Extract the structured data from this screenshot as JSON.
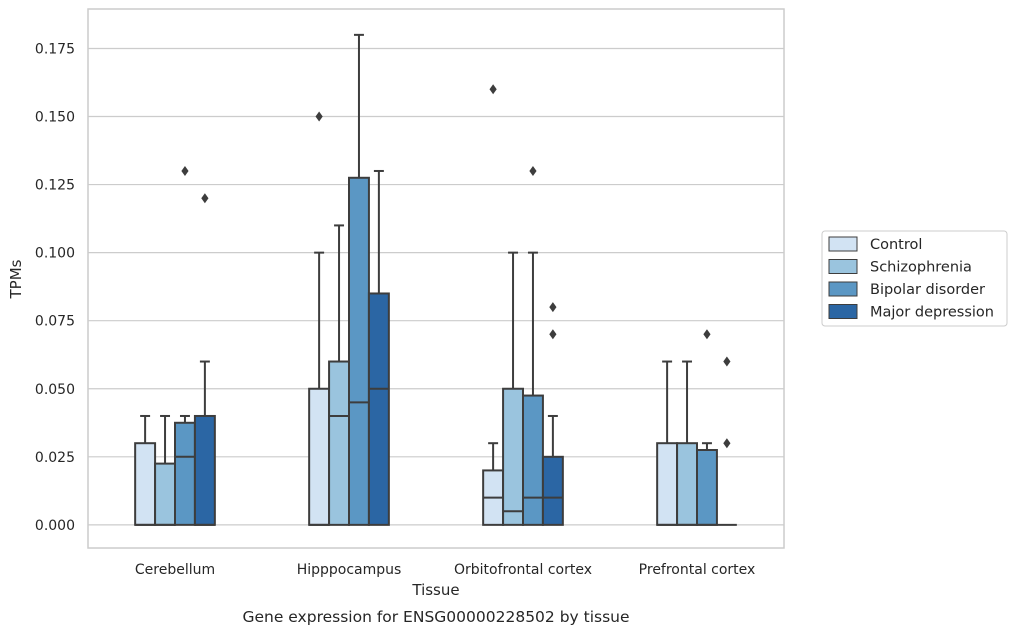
{
  "caption": "Gene expression for ENSG00000228502 by tissue",
  "chart_data": {
    "type": "box",
    "xlabel": "Tissue",
    "ylabel": "TPMs",
    "ylim": [
      -0.0085,
      0.1895
    ],
    "yticks": [
      0.0,
      0.025,
      0.05,
      0.075,
      0.1,
      0.125,
      0.15,
      0.175
    ],
    "ytick_labels": [
      "0.000",
      "0.025",
      "0.050",
      "0.075",
      "0.100",
      "0.125",
      "0.150",
      "0.175"
    ],
    "grid": "horizontal",
    "legend_position": "right",
    "categories": [
      "Cerebellum",
      "Hipppocampus",
      "Orbitofrontal cortex",
      "Prefrontal cortex"
    ],
    "series": [
      {
        "name": "Control",
        "color": "#d2e3f3",
        "boxes": [
          {
            "whisker_low": 0.0,
            "q1": 0.0,
            "median": 0.0,
            "q3": 0.03,
            "whisker_high": 0.04,
            "outliers": []
          },
          {
            "whisker_low": 0.0,
            "q1": 0.0,
            "median": 0.0,
            "q3": 0.05,
            "whisker_high": 0.1,
            "outliers": [
              0.15
            ]
          },
          {
            "whisker_low": 0.0,
            "q1": 0.0,
            "median": 0.01,
            "q3": 0.02,
            "whisker_high": 0.03,
            "outliers": [
              0.16
            ]
          },
          {
            "whisker_low": 0.0,
            "q1": 0.0,
            "median": 0.0,
            "q3": 0.03,
            "whisker_high": 0.06,
            "outliers": []
          }
        ]
      },
      {
        "name": "Schizophrenia",
        "color": "#9ac4de",
        "boxes": [
          {
            "whisker_low": 0.0,
            "q1": 0.0,
            "median": 0.0,
            "q3": 0.0225,
            "whisker_high": 0.04,
            "outliers": []
          },
          {
            "whisker_low": 0.0,
            "q1": 0.0,
            "median": 0.04,
            "q3": 0.06,
            "whisker_high": 0.11,
            "outliers": []
          },
          {
            "whisker_low": 0.0,
            "q1": 0.0,
            "median": 0.005,
            "q3": 0.05,
            "whisker_high": 0.1,
            "outliers": []
          },
          {
            "whisker_low": 0.0,
            "q1": 0.0,
            "median": 0.0,
            "q3": 0.03,
            "whisker_high": 0.06,
            "outliers": []
          }
        ]
      },
      {
        "name": "Bipolar disorder",
        "color": "#5b97c4",
        "boxes": [
          {
            "whisker_low": 0.0,
            "q1": 0.0,
            "median": 0.025,
            "q3": 0.0375,
            "whisker_high": 0.04,
            "outliers": [
              0.13
            ]
          },
          {
            "whisker_low": 0.0,
            "q1": 0.0,
            "median": 0.045,
            "q3": 0.1275,
            "whisker_high": 0.18,
            "outliers": []
          },
          {
            "whisker_low": 0.0,
            "q1": 0.0,
            "median": 0.01,
            "q3": 0.0475,
            "whisker_high": 0.1,
            "outliers": [
              0.13
            ]
          },
          {
            "whisker_low": 0.0,
            "q1": 0.0,
            "median": 0.0,
            "q3": 0.0275,
            "whisker_high": 0.03,
            "outliers": [
              0.07
            ]
          }
        ]
      },
      {
        "name": "Major depression",
        "color": "#2b66a4",
        "boxes": [
          {
            "whisker_low": 0.0,
            "q1": 0.0,
            "median": 0.0,
            "q3": 0.04,
            "whisker_high": 0.06,
            "outliers": [
              0.12
            ]
          },
          {
            "whisker_low": 0.0,
            "q1": 0.0,
            "median": 0.05,
            "q3": 0.085,
            "whisker_high": 0.13,
            "outliers": []
          },
          {
            "whisker_low": 0.0,
            "q1": 0.0,
            "median": 0.01,
            "q3": 0.025,
            "whisker_high": 0.04,
            "outliers": [
              0.08,
              0.07
            ]
          },
          {
            "whisker_low": 0.0,
            "q1": 0.0,
            "median": 0.0,
            "q3": 0.0,
            "whisker_high": 0.0,
            "outliers": [
              0.06,
              0.03
            ]
          }
        ]
      }
    ]
  }
}
